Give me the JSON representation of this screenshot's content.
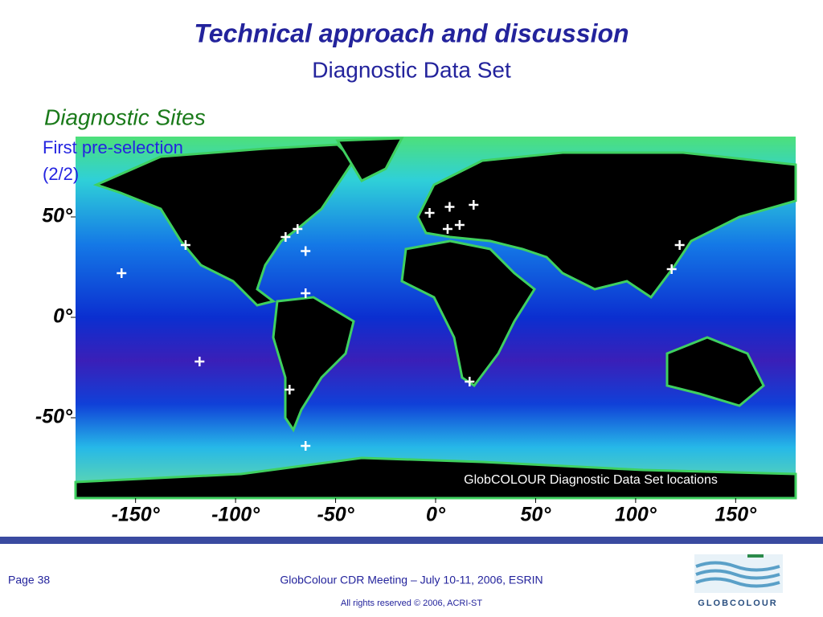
{
  "header": {
    "title": "Technical approach and discussion",
    "subtitle": "Diagnostic Data Set"
  },
  "section": {
    "heading": "Diagnostic Sites",
    "subheading_line1": "First pre-selection",
    "subheading_line2": "(2/2)"
  },
  "map": {
    "caption": "GlobCOLOUR Diagnostic Data Set locations",
    "xlim": [
      -180,
      180
    ],
    "ylim": [
      -90,
      90
    ],
    "xticks": [
      {
        "value": -150,
        "label": "-150°"
      },
      {
        "value": -100,
        "label": "-100°"
      },
      {
        "value": -50,
        "label": "-50°"
      },
      {
        "value": 0,
        "label": "0°"
      },
      {
        "value": 50,
        "label": "50°"
      },
      {
        "value": 100,
        "label": "100°"
      },
      {
        "value": 150,
        "label": "150°"
      }
    ],
    "yticks": [
      {
        "value": 50,
        "label": "50°"
      },
      {
        "value": 0,
        "label": "0°"
      },
      {
        "value": -50,
        "label": "-50°"
      }
    ],
    "sites": [
      {
        "lon": -157,
        "lat": 22
      },
      {
        "lon": -125,
        "lat": 36
      },
      {
        "lon": -118,
        "lat": -22
      },
      {
        "lon": -75,
        "lat": 40
      },
      {
        "lon": -69,
        "lat": 44
      },
      {
        "lon": -65,
        "lat": 33
      },
      {
        "lon": -65,
        "lat": 12
      },
      {
        "lon": -73,
        "lat": -36
      },
      {
        "lon": -65,
        "lat": -64
      },
      {
        "lon": -3,
        "lat": 52
      },
      {
        "lon": 7,
        "lat": 55
      },
      {
        "lon": 19,
        "lat": 56
      },
      {
        "lon": 6,
        "lat": 44
      },
      {
        "lon": 12,
        "lat": 46
      },
      {
        "lon": 17,
        "lat": -32
      },
      {
        "lon": 122,
        "lat": 36
      },
      {
        "lon": 118,
        "lat": 24
      }
    ]
  },
  "footer": {
    "page": "Page 38",
    "meeting": "GlobColour CDR Meeting – July 10-11, 2006, ESRIN",
    "copyright": "All rights reserved © 2006, ACRI-ST",
    "logo": "GLOBCOLOUR"
  }
}
